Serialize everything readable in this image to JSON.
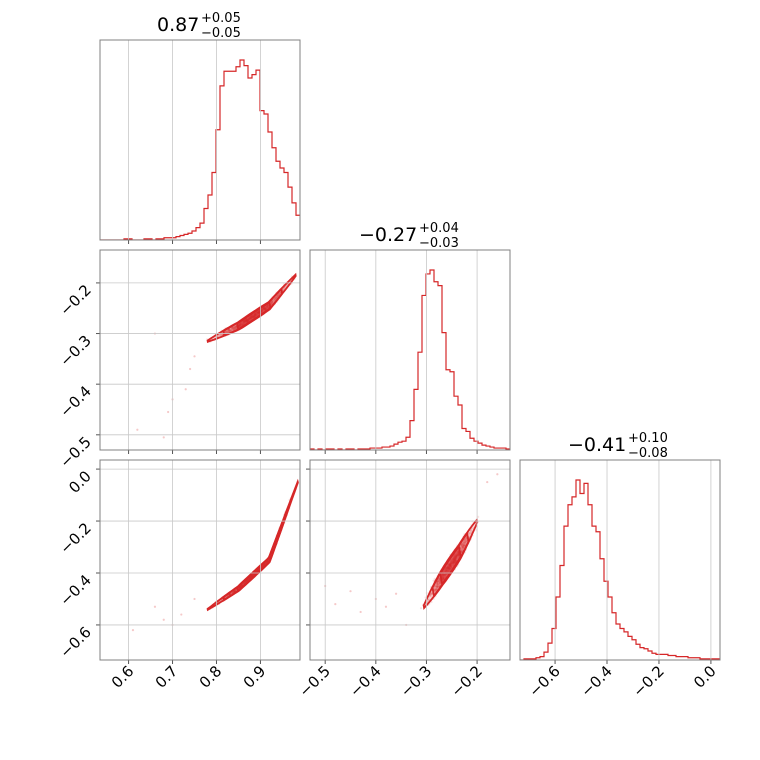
{
  "chart_data": {
    "type": "corner",
    "color": "#d62728",
    "grid": true,
    "titles": [
      {
        "value": "0.87",
        "upper": "+0.05",
        "lower": "−0.05"
      },
      {
        "value": "−0.27",
        "upper": "+0.04",
        "lower": "−0.03"
      },
      {
        "value": "−0.41",
        "upper": "+0.10",
        "lower": "−0.08"
      }
    ],
    "ranges": [
      [
        0.535,
        0.99
      ],
      [
        -0.53,
        -0.135
      ],
      [
        -0.735,
        0.035
      ]
    ],
    "tick_values": [
      [
        0.6,
        0.7,
        0.8,
        0.9
      ],
      [
        -0.5,
        -0.4,
        -0.3,
        -0.2
      ],
      [
        -0.6,
        -0.4,
        -0.2,
        0.0
      ]
    ],
    "tick_labels": [
      [
        "0.6",
        "0.7",
        "0.8",
        "0.9"
      ],
      [
        "−0.5",
        "−0.4",
        "−0.3",
        "−0.2"
      ],
      [
        "−0.6",
        "−0.4",
        "−0.2",
        "0.0"
      ]
    ],
    "histograms": [
      {
        "bin_start": 0.535,
        "bin_width": 0.0091,
        "counts": [
          0,
          0,
          0,
          0,
          0,
          0,
          1,
          1,
          0,
          0,
          0,
          1,
          1,
          0,
          1,
          1,
          2,
          2,
          2,
          3,
          4,
          5,
          6,
          8,
          11,
          15,
          28,
          40,
          60,
          98,
          137,
          150,
          150,
          150,
          154,
          160,
          155,
          144,
          147,
          151,
          115,
          112,
          96,
          82,
          70,
          64,
          60,
          47,
          33,
          22
        ]
      },
      {
        "bin_start": -0.53,
        "bin_width": 0.0079,
        "counts": [
          1,
          0,
          1,
          0,
          1,
          1,
          0,
          1,
          0,
          1,
          1,
          0,
          1,
          1,
          1,
          2,
          2,
          2,
          3,
          3,
          4,
          6,
          8,
          9,
          13,
          30,
          62,
          100,
          158,
          180,
          184,
          172,
          168,
          120,
          82,
          80,
          55,
          46,
          22,
          19,
          12,
          9,
          7,
          5,
          4,
          3,
          2,
          2,
          2,
          1
        ]
      },
      {
        "bin_start": -0.735,
        "bin_width": 0.0154,
        "counts": [
          0,
          1,
          1,
          1,
          2,
          3,
          7,
          15,
          28,
          56,
          84,
          119,
          138,
          145,
          160,
          148,
          157,
          138,
          119,
          114,
          90,
          70,
          56,
          42,
          32,
          28,
          25,
          21,
          18,
          14,
          11,
          10,
          8,
          6,
          5,
          5,
          5,
          4,
          4,
          3,
          3,
          3,
          2,
          2,
          2,
          1,
          1,
          1,
          1,
          1
        ]
      }
    ],
    "relations": [
      {
        "x": 0,
        "y": 1,
        "curve": [
          [
            0.78,
            -0.315
          ],
          [
            0.85,
            -0.285
          ],
          [
            0.92,
            -0.245
          ],
          [
            0.98,
            -0.185
          ]
        ],
        "scatter_width": 0.022,
        "sparse": [
          [
            0.62,
            -0.49
          ],
          [
            0.68,
            -0.505
          ],
          [
            0.69,
            -0.455
          ],
          [
            0.7,
            -0.43
          ],
          [
            0.73,
            -0.41
          ],
          [
            0.74,
            -0.37
          ],
          [
            0.75,
            -0.345
          ],
          [
            0.66,
            -0.3
          ]
        ]
      },
      {
        "x": 0,
        "y": 2,
        "curve": [
          [
            0.78,
            -0.54
          ],
          [
            0.85,
            -0.46
          ],
          [
            0.92,
            -0.35
          ],
          [
            0.985,
            -0.05
          ]
        ],
        "scatter_width": 0.014,
        "sparse": [
          [
            0.61,
            -0.62
          ],
          [
            0.66,
            -0.53
          ],
          [
            0.7,
            -0.6
          ],
          [
            0.72,
            -0.56
          ],
          [
            0.75,
            -0.5
          ],
          [
            0.68,
            -0.58
          ]
        ]
      },
      {
        "x": 1,
        "y": 2,
        "curve": [
          [
            -0.305,
            -0.53
          ],
          [
            -0.27,
            -0.42
          ],
          [
            -0.235,
            -0.32
          ],
          [
            -0.2,
            -0.2
          ]
        ],
        "scatter_width": 0.04,
        "sparse": [
          [
            -0.48,
            -0.52
          ],
          [
            -0.45,
            -0.47
          ],
          [
            -0.43,
            -0.55
          ],
          [
            -0.4,
            -0.5
          ],
          [
            -0.38,
            -0.53
          ],
          [
            -0.36,
            -0.48
          ],
          [
            -0.34,
            -0.6
          ],
          [
            -0.5,
            -0.45
          ],
          [
            -0.18,
            -0.05
          ],
          [
            -0.16,
            -0.02
          ]
        ]
      }
    ]
  }
}
